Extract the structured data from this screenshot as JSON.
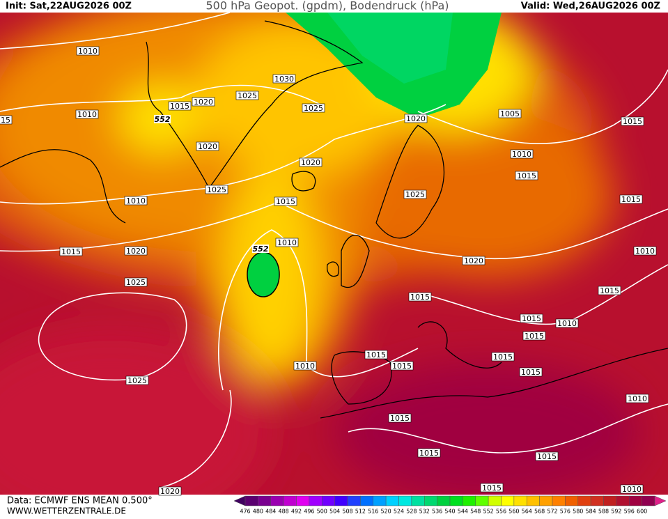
{
  "header": {
    "init": "Init: Sat,22AUG2026 00Z",
    "title": "500 hPa Geopot. (gpdm), Bodendruck (hPa)",
    "valid": "Valid: Wed,26AUG2026 00Z"
  },
  "footer": {
    "data": "Data: ECMWF ENS MEAN 0.500°",
    "site": "WWW.WETTERZENTRALE.DE"
  },
  "colorbar": {
    "labels": [
      476,
      480,
      484,
      488,
      492,
      496,
      500,
      504,
      508,
      512,
      516,
      520,
      524,
      528,
      532,
      536,
      540,
      544,
      548,
      552,
      556,
      560,
      564,
      568,
      572,
      576,
      580,
      584,
      588,
      592,
      596,
      600
    ],
    "colors": [
      "#5a0070",
      "#7a0090",
      "#9a00b0",
      "#c000d0",
      "#e000f0",
      "#a000ff",
      "#7000ff",
      "#4000ff",
      "#2040ff",
      "#0070ff",
      "#00a0ff",
      "#00d0ff",
      "#00e8e0",
      "#00e0a0",
      "#00d870",
      "#00d040",
      "#00e020",
      "#20f000",
      "#60ff00",
      "#d0ff00",
      "#ffff00",
      "#ffe000",
      "#ffc000",
      "#ffa000",
      "#ff8000",
      "#f06000",
      "#e04010",
      "#d03020",
      "#c02020",
      "#b01030",
      "#a00040",
      "#900050"
    ]
  },
  "isobars": [
    "1010",
    "1010",
    "1015",
    "1020",
    "1025",
    "1030",
    "1025",
    "1020",
    "1020",
    "1025",
    "1010",
    "1015",
    "1025",
    "1020",
    "1005",
    "1010",
    "1015",
    "1015",
    "1015",
    "1010",
    "1015",
    "1020",
    "1010",
    "1025",
    "1020",
    "1015",
    "1015",
    "1015",
    "1010",
    "1015",
    "1015",
    "1015",
    "1010",
    "1015",
    "1015",
    "1025",
    "1010",
    "1015",
    "1015",
    "1015",
    "1015",
    "1010",
    "1020",
    "15"
  ],
  "geopot_labels": [
    "552",
    "552"
  ]
}
